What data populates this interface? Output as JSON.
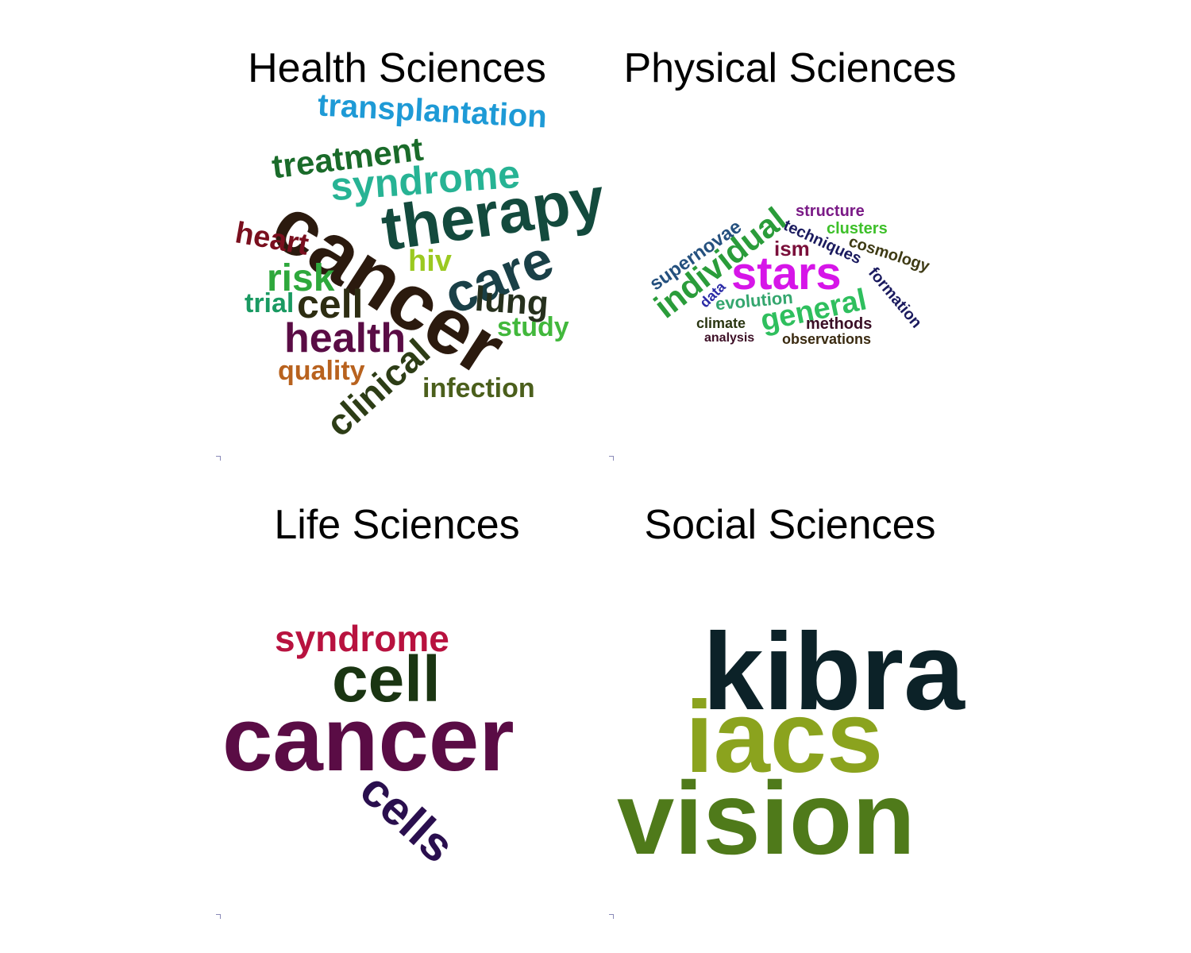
{
  "panels": [
    {
      "title": "Health Sciences",
      "words": [
        {
          "text": "transplantation",
          "color": "#1e9ad6",
          "rotate": 3
        },
        {
          "text": "treatment",
          "color": "#1a6b2a",
          "rotate": -7
        },
        {
          "text": "syndrome",
          "color": "#27b394",
          "rotate": -4
        },
        {
          "text": "cancer",
          "color": "#2b1a0e",
          "rotate": 33
        },
        {
          "text": "therapy",
          "color": "#134a3d",
          "rotate": -8
        },
        {
          "text": "heart",
          "color": "#7a0f1e",
          "rotate": 10
        },
        {
          "text": "hiv",
          "color": "#9bc920",
          "rotate": 0
        },
        {
          "text": "care",
          "color": "#1a4047",
          "rotate": -22
        },
        {
          "text": "risk",
          "color": "#2ea83c",
          "rotate": 0
        },
        {
          "text": "trial",
          "color": "#1a9a62",
          "rotate": 0
        },
        {
          "text": "cell",
          "color": "#2d2d12",
          "rotate": 0
        },
        {
          "text": "lung",
          "color": "#26301d",
          "rotate": 4
        },
        {
          "text": "study",
          "color": "#42b83c",
          "rotate": 0
        },
        {
          "text": "health",
          "color": "#5a0c45",
          "rotate": 0
        },
        {
          "text": "quality",
          "color": "#b8621e",
          "rotate": 0
        },
        {
          "text": "clinical",
          "color": "#2d3d16",
          "rotate": -42
        },
        {
          "text": "infection",
          "color": "#4b5f1c",
          "rotate": 0
        }
      ]
    },
    {
      "title": "Physical Sciences",
      "words": [
        {
          "text": "structure",
          "color": "#7a1a86",
          "rotate": 0
        },
        {
          "text": "individual",
          "color": "#2a9c3a",
          "rotate": -38
        },
        {
          "text": "supernovae",
          "color": "#24507e",
          "rotate": -35
        },
        {
          "text": "techniques",
          "color": "#1a1a5e",
          "rotate": 25
        },
        {
          "text": "clusters",
          "color": "#3ec02a",
          "rotate": 0
        },
        {
          "text": "cosmology",
          "color": "#3e3a14",
          "rotate": 18
        },
        {
          "text": "ism",
          "color": "#7a0f3a",
          "rotate": 0
        },
        {
          "text": "stars",
          "color": "#d615e8",
          "rotate": 0
        },
        {
          "text": "formation",
          "color": "#1a1a5e",
          "rotate": 50
        },
        {
          "text": "data",
          "color": "#2a2aa6",
          "rotate": -45
        },
        {
          "text": "evolution",
          "color": "#34a66e",
          "rotate": -5
        },
        {
          "text": "general",
          "color": "#2fbf5e",
          "rotate": -12
        },
        {
          "text": "climate",
          "color": "#2a3612",
          "rotate": 0
        },
        {
          "text": "methods",
          "color": "#3a0f26",
          "rotate": 0
        },
        {
          "text": "analysis",
          "color": "#3d0f26",
          "rotate": 0
        },
        {
          "text": "observations",
          "color": "#3a2a10",
          "rotate": 0
        }
      ]
    },
    {
      "title": "Life Sciences",
      "words": [
        {
          "text": "syndrome",
          "color": "#b8123f",
          "rotate": 0
        },
        {
          "text": "cell",
          "color": "#1a3512",
          "rotate": 0
        },
        {
          "text": "cancer",
          "color": "#5a0c45",
          "rotate": 0
        },
        {
          "text": "cells",
          "color": "#2a0f4e",
          "rotate": 42
        }
      ]
    },
    {
      "title": "Social Sciences",
      "words": [
        {
          "text": "kibra",
          "color": "#0c2228",
          "rotate": 0
        },
        {
          "text": "iacs",
          "color": "#8ba31e",
          "rotate": 0
        },
        {
          "text": "vision",
          "color": "#4f7a1a",
          "rotate": 0
        }
      ]
    }
  ]
}
